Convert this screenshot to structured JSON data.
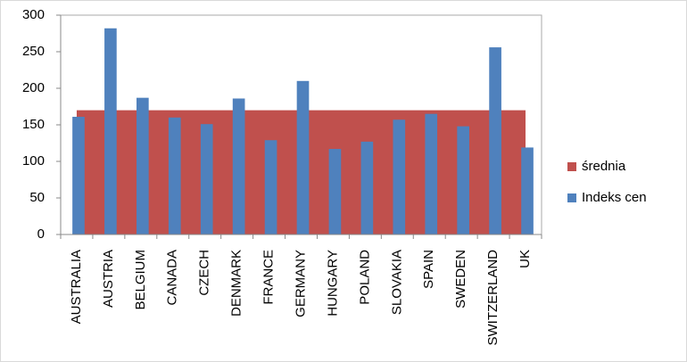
{
  "chart_data": {
    "type": "bar",
    "categories": [
      "AUSTRALIA",
      "AUSTRIA",
      "BELGIUM",
      "CANADA",
      "CZECH",
      "DENMARK",
      "FRANCE",
      "GERMANY",
      "HUNGARY",
      "POLAND",
      "SLOVAKIA",
      "SPAIN",
      "SWEDEN",
      "SWITZERLAND",
      "UK"
    ],
    "series": [
      {
        "name": "średnia",
        "type": "area",
        "color": "#c0504d",
        "values": [
          170,
          170,
          170,
          170,
          170,
          170,
          170,
          170,
          170,
          170,
          170,
          170,
          170,
          170,
          170
        ]
      },
      {
        "name": "Indeks cen",
        "type": "bar",
        "color": "#4f81bd",
        "values": [
          161,
          282,
          187,
          160,
          151,
          186,
          129,
          210,
          117,
          127,
          157,
          165,
          148,
          256,
          119
        ]
      }
    ],
    "ylim": [
      0,
      300
    ],
    "yticks": [
      0,
      50,
      100,
      150,
      200,
      250,
      300
    ],
    "grid": false,
    "legend": "right"
  }
}
